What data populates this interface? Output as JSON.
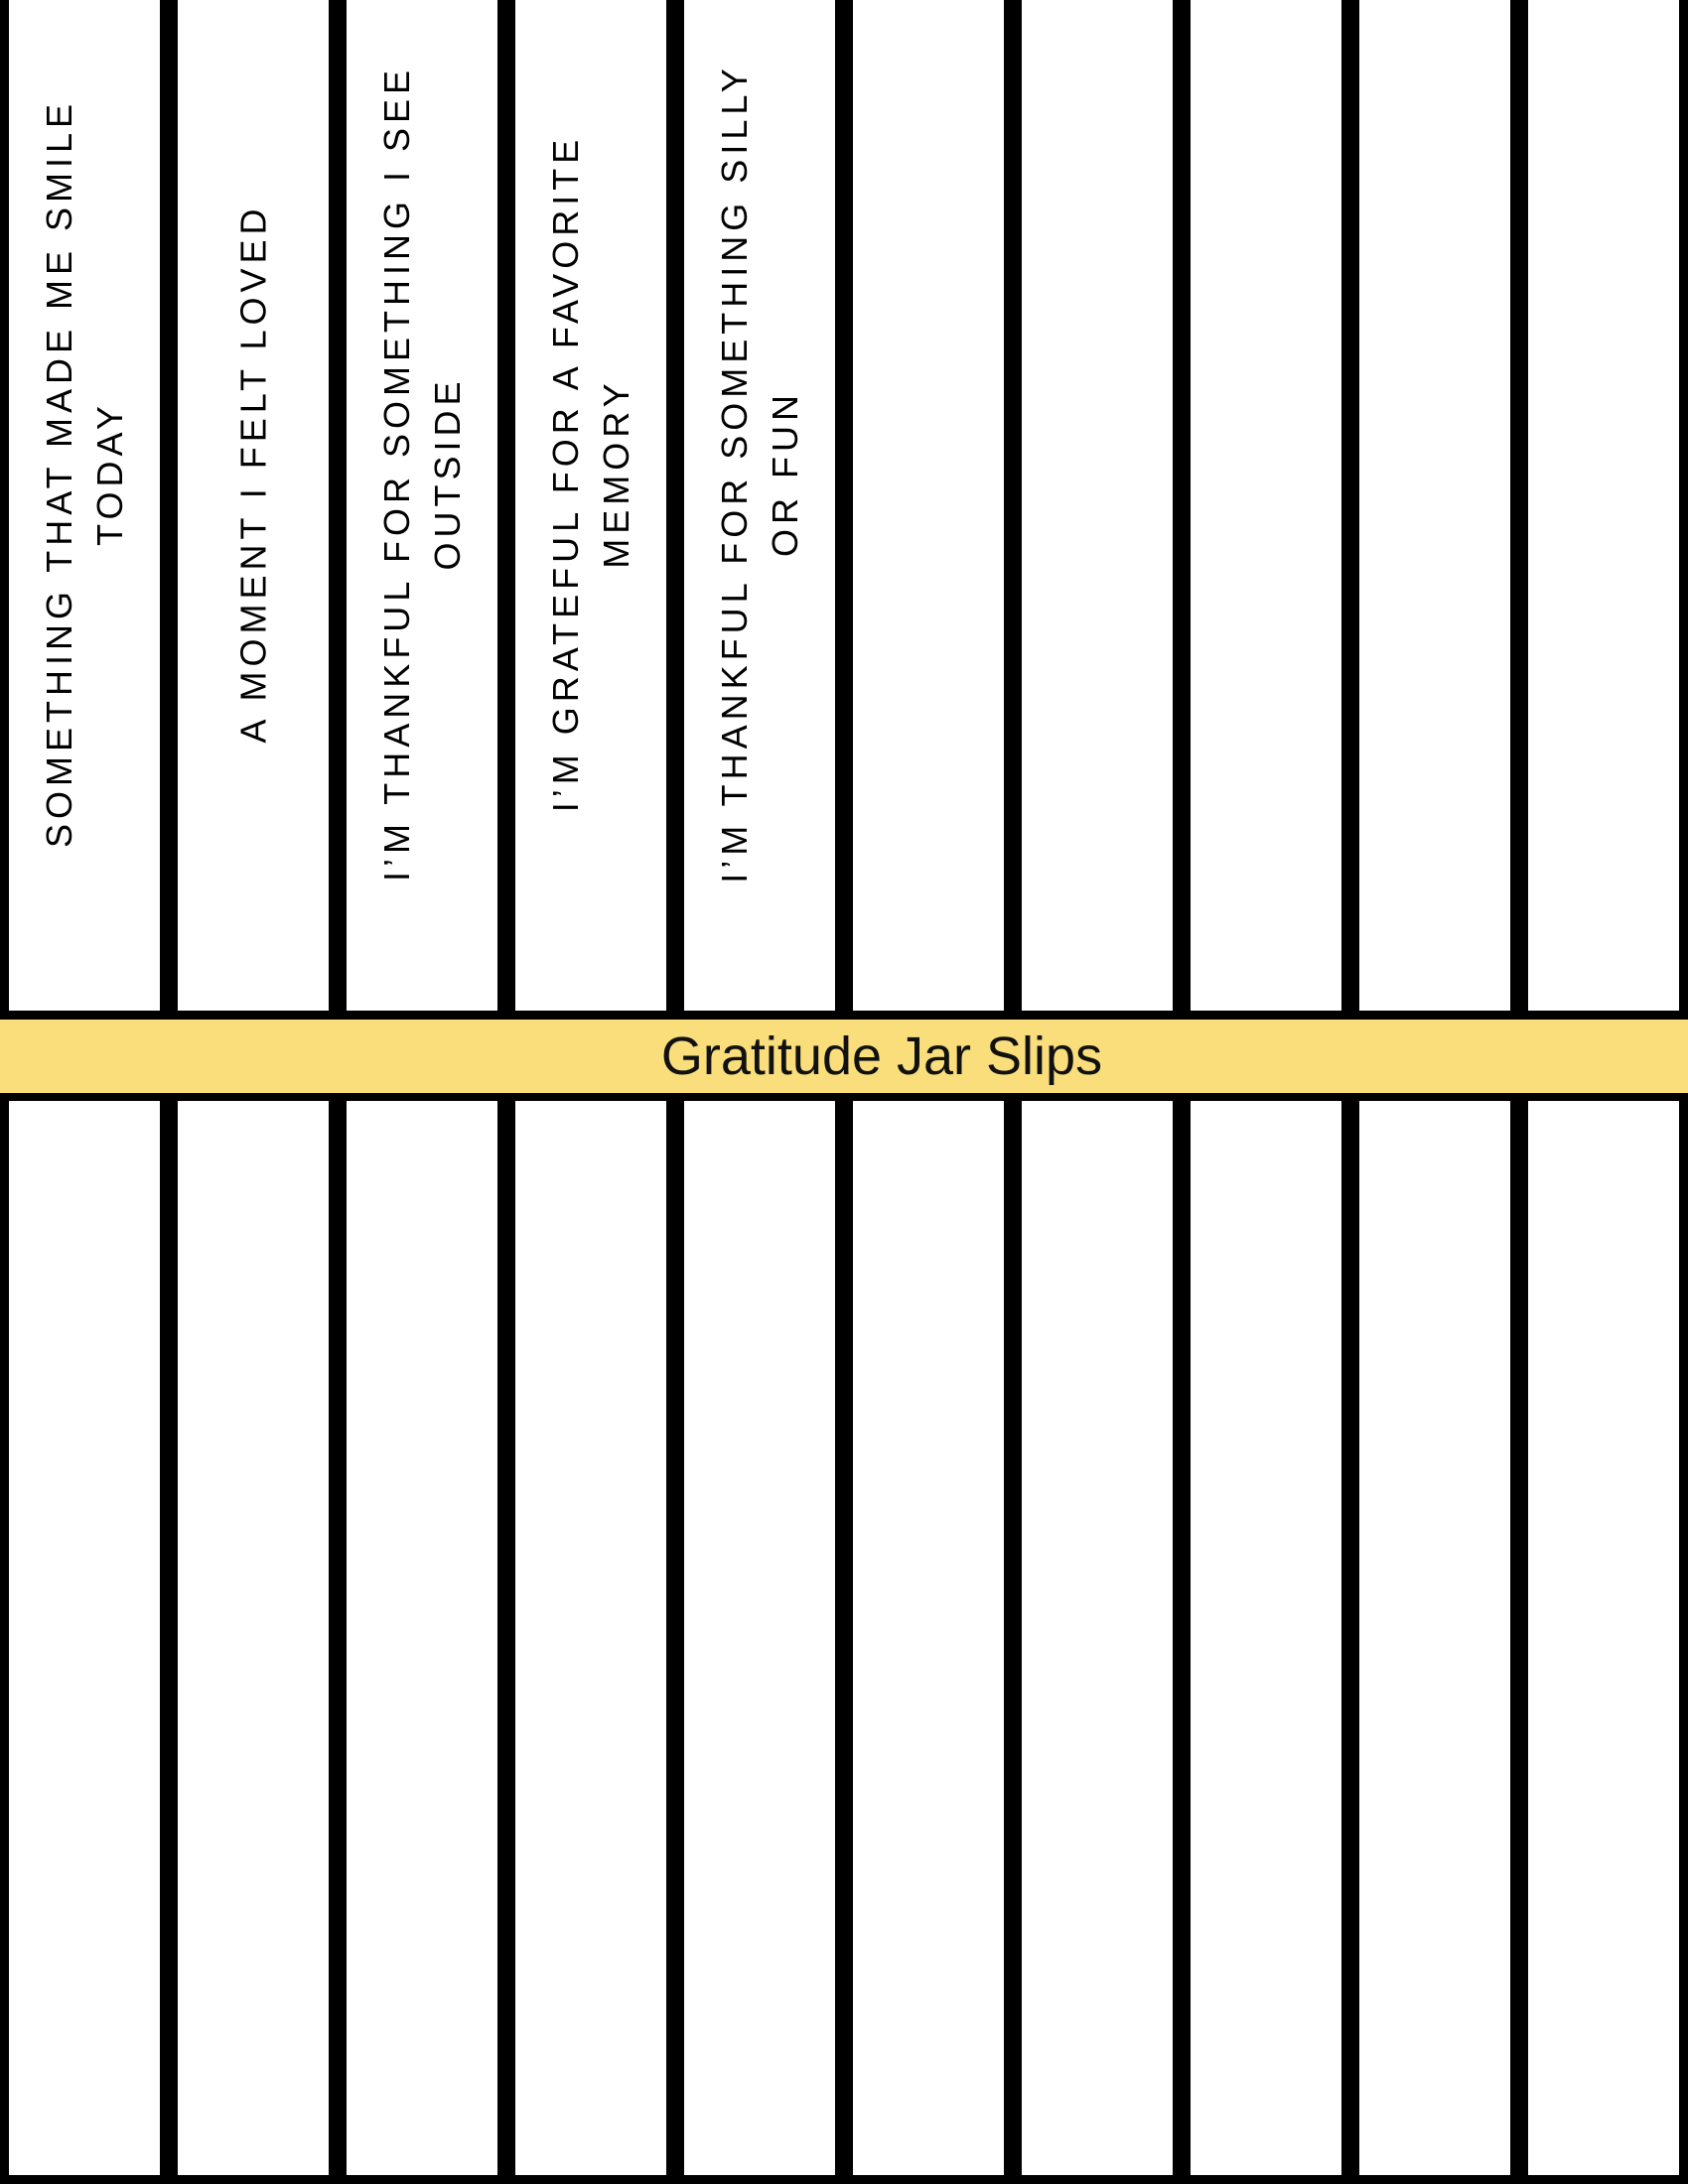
{
  "title": "Gratitude Jar Slips",
  "colors": {
    "banner": "#f9de7b",
    "border": "#000000",
    "slip": "#ffffff"
  },
  "slips_top": [
    {
      "lines": [
        "SOMETHING THAT MADE ME SMILE",
        "TODAY"
      ]
    },
    {
      "lines": [
        "A MOMENT I FELT LOVED"
      ]
    },
    {
      "lines": [
        "I’M THANKFUL FOR SOMETHING I SEE",
        "OUTSIDE"
      ]
    },
    {
      "lines": [
        "I’M GRATEFUL FOR A FAVORITE",
        "MEMORY"
      ]
    },
    {
      "lines": [
        "I’M THANKFUL FOR SOMETHING SILLY",
        "OR FUN"
      ]
    },
    {
      "lines": []
    },
    {
      "lines": []
    },
    {
      "lines": []
    },
    {
      "lines": []
    },
    {
      "lines": []
    }
  ],
  "slips_bottom_count": 10
}
